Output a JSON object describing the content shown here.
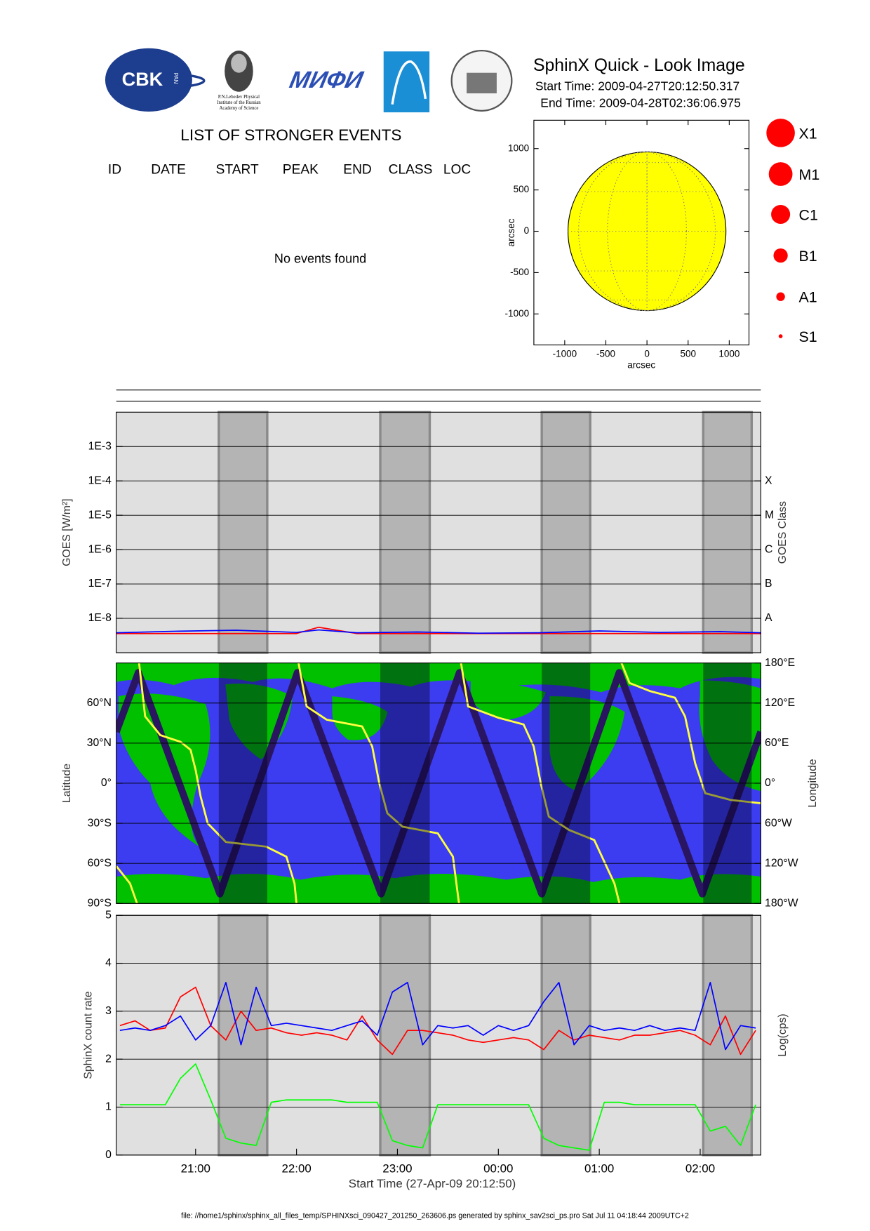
{
  "header": {
    "title": "SphinX Quick - Look Image",
    "start_time": "Start Time: 2009-04-27T20:12:50.317",
    "end_time": "End Time: 2009-04-28T02:36:06.975",
    "logo_cbk": "CBK",
    "logo_pan": "PAN",
    "logo_lebedev": [
      "P.N.Lebedev Physical",
      "Institute of the Russian",
      "Academy of Science"
    ],
    "logo_mifi": "МИФИ"
  },
  "events": {
    "title": "LIST OF STRONGER EVENTS",
    "columns": [
      "ID",
      "DATE",
      "START",
      "PEAK",
      "END",
      "CLASS",
      "LOC"
    ],
    "message": "No events found"
  },
  "chart_data": [
    {
      "type": "disk",
      "xlabel": "arcsec",
      "ylabel": "arcsec",
      "xlim": [
        -1375,
        1240
      ],
      "ylim": [
        -1375,
        1343
      ],
      "xticks": [
        -1000,
        -500,
        0,
        500,
        1000
      ],
      "yticks": [
        -1000,
        -500,
        0,
        500,
        1000
      ],
      "disk_radius": 960,
      "disk_color": "#ffff00",
      "legend": {
        "labels": [
          "X1",
          "M1",
          "C1",
          "B1",
          "A1",
          "S1"
        ],
        "color": "#ff0000"
      }
    },
    {
      "type": "line",
      "ylabel": "GOES [W/m²]",
      "y2label": "GOES Class",
      "log_y": true,
      "grid": true,
      "xlim": [
        20.214,
        26.601
      ],
      "ylim": [
        1e-09,
        0.01
      ],
      "yticks": [
        {
          "value": 1e-08,
          "label": "1E-8"
        },
        {
          "value": 1e-07,
          "label": "1E-7"
        },
        {
          "value": 1e-06,
          "label": "1E-6"
        },
        {
          "value": 1e-05,
          "label": "1E-5"
        },
        {
          "value": 0.0001,
          "label": "1E-4"
        },
        {
          "value": 0.001,
          "label": "1E-3"
        }
      ],
      "y2lim": [
        1e-09,
        0.01
      ],
      "y2ticks": [
        {
          "value": 1e-08,
          "label": "A"
        },
        {
          "value": 1e-07,
          "label": "B"
        },
        {
          "value": 1e-06,
          "label": "C"
        },
        {
          "value": 1e-05,
          "label": "M"
        },
        {
          "value": 0.0001,
          "label": "X"
        }
      ],
      "shaded_intervals": [
        [
          21.23,
          21.71
        ],
        [
          22.83,
          23.32
        ],
        [
          24.43,
          24.91
        ],
        [
          26.03,
          26.51
        ]
      ],
      "x": [
        20.214,
        20.8,
        21.4,
        22.0,
        22.22,
        22.6,
        23.2,
        23.8,
        24.4,
        25.0,
        25.6,
        26.2,
        26.601
      ],
      "series": [
        {
          "color": "#ff0000",
          "values": [
            3.6e-09,
            3.6e-09,
            3.6e-09,
            3.6e-09,
            5.5e-09,
            3.6e-09,
            3.6e-09,
            3.6e-09,
            3.6e-09,
            3.6e-09,
            3.6e-09,
            3.6e-09,
            3.6e-09
          ]
        },
        {
          "color": "#0000ff",
          "values": [
            3.8e-09,
            4.2e-09,
            4.5e-09,
            3.9e-09,
            4.6e-09,
            3.8e-09,
            4e-09,
            3.7e-09,
            3.8e-09,
            4.3e-09,
            3.9e-09,
            4.1e-09,
            3.8e-09
          ]
        }
      ]
    },
    {
      "type": "map",
      "ylabel": "Latitude",
      "y2label": "Longitude",
      "grid": true,
      "xlim": [
        20.214,
        26.601
      ],
      "ylim": [
        -90,
        90
      ],
      "yticks": [
        {
          "value": -90,
          "label": "90°S"
        },
        {
          "value": -60,
          "label": "60°S"
        },
        {
          "value": -30,
          "label": "30°S"
        },
        {
          "value": 0,
          "label": "0°"
        },
        {
          "value": 30,
          "label": "30°N"
        },
        {
          "value": 60,
          "label": "60°N"
        }
      ],
      "y2lim": [
        -180,
        180
      ],
      "y2ticks": [
        {
          "value": -180,
          "label": "180°W"
        },
        {
          "value": -120,
          "label": "120°W"
        },
        {
          "value": -60,
          "label": "60°W"
        },
        {
          "value": 0,
          "label": "0°"
        },
        {
          "value": 60,
          "label": "60°E"
        },
        {
          "value": 120,
          "label": "120°E"
        },
        {
          "value": 180,
          "label": "180°E"
        }
      ],
      "shaded_intervals": [
        [
          21.23,
          21.71
        ],
        [
          22.83,
          23.32
        ],
        [
          24.43,
          24.91
        ],
        [
          26.03,
          26.51
        ]
      ],
      "series": [
        {
          "color": "#2a1560",
          "x": [
            20.214,
            20.433,
            21.241,
            22.009,
            22.839,
            23.615,
            24.43,
            25.198,
            26.021,
            26.601
          ],
          "values": [
            38.5,
            82.8,
            -82.8,
            82.8,
            -82.8,
            82.8,
            -82.8,
            82.8,
            -82.8,
            38.5
          ]
        },
        {
          "color": "#ffff40",
          "axis": "y2",
          "x": [
            20.214,
            20.35,
            20.42,
            20.43,
            20.44,
            20.5,
            20.65,
            20.85,
            20.95,
            21.0,
            21.05,
            21.12,
            21.3,
            21.7,
            21.9,
            21.98,
            22.0,
            22.01,
            22.02,
            22.1,
            22.3,
            22.65,
            22.75,
            22.82,
            22.9,
            23.05,
            23.4,
            23.55,
            23.61,
            23.62,
            23.63,
            23.7,
            24.0,
            24.25,
            24.35,
            24.42,
            24.5,
            24.7,
            24.95,
            25.15,
            25.2,
            25.21,
            25.22,
            25.3,
            25.5,
            25.75,
            25.85,
            25.95,
            26.05,
            26.3,
            26.6
          ],
          "values": [
            -124,
            -150,
            -180,
            null,
            180,
            100,
            72,
            62,
            50,
            20,
            -20,
            -60,
            -88,
            -95,
            -110,
            -150,
            -180,
            null,
            180,
            115,
            95,
            85,
            55,
            0,
            -45,
            -65,
            -75,
            -110,
            -180,
            null,
            180,
            115,
            98,
            88,
            55,
            0,
            -50,
            -70,
            -85,
            -150,
            -180,
            null,
            180,
            150,
            138,
            128,
            100,
            30,
            -15,
            -25,
            -30
          ]
        }
      ]
    },
    {
      "type": "line",
      "ylabel": "SphinX count rate",
      "y2label": "Log(cps)",
      "xlabel": "Start Time (27-Apr-09 20:12:50)",
      "grid": true,
      "xlim": [
        20.214,
        26.601
      ],
      "ylim": [
        0,
        5
      ],
      "yticks": [
        0,
        1,
        2,
        3,
        4,
        5
      ],
      "xticks": [
        {
          "value": 21,
          "label": "21:00"
        },
        {
          "value": 22,
          "label": "22:00"
        },
        {
          "value": 23,
          "label": "23:00"
        },
        {
          "value": 24,
          "label": "00:00"
        },
        {
          "value": 25,
          "label": "01:00"
        },
        {
          "value": 26,
          "label": "02:00"
        }
      ],
      "shaded_intervals": [
        [
          21.23,
          21.71
        ],
        [
          22.83,
          23.32
        ],
        [
          24.43,
          24.91
        ],
        [
          26.03,
          26.51
        ]
      ],
      "x": [
        20.25,
        20.4,
        20.55,
        20.7,
        20.85,
        21.0,
        21.15,
        21.3,
        21.45,
        21.6,
        21.75,
        21.9,
        22.05,
        22.2,
        22.35,
        22.5,
        22.65,
        22.8,
        22.95,
        23.1,
        23.25,
        23.4,
        23.55,
        23.7,
        23.85,
        24.0,
        24.15,
        24.3,
        24.45,
        24.6,
        24.75,
        24.9,
        25.05,
        25.2,
        25.35,
        25.5,
        25.65,
        25.8,
        25.95,
        26.1,
        26.25,
        26.4,
        26.55
      ],
      "series": [
        {
          "color": "#ff0000",
          "values": [
            2.7,
            2.8,
            2.6,
            2.65,
            3.3,
            3.5,
            2.7,
            2.4,
            3.0,
            2.6,
            2.65,
            2.55,
            2.5,
            2.55,
            2.5,
            2.4,
            2.9,
            2.4,
            2.1,
            2.6,
            2.6,
            2.55,
            2.5,
            2.4,
            2.35,
            2.4,
            2.45,
            2.4,
            2.2,
            2.6,
            2.4,
            2.5,
            2.45,
            2.4,
            2.5,
            2.5,
            2.55,
            2.6,
            2.5,
            2.3,
            2.9,
            2.1,
            2.6
          ]
        },
        {
          "color": "#0000ff",
          "values": [
            2.6,
            2.65,
            2.6,
            2.7,
            2.9,
            2.4,
            2.7,
            3.6,
            2.3,
            3.5,
            2.7,
            2.75,
            2.7,
            2.65,
            2.6,
            2.7,
            2.8,
            2.5,
            3.4,
            3.6,
            2.3,
            2.7,
            2.65,
            2.7,
            2.5,
            2.7,
            2.6,
            2.7,
            3.2,
            3.6,
            2.3,
            2.7,
            2.6,
            2.65,
            2.6,
            2.7,
            2.6,
            2.65,
            2.6,
            3.6,
            2.2,
            2.7,
            2.65
          ]
        },
        {
          "color": "#00ff00",
          "values": [
            1.05,
            1.05,
            1.05,
            1.05,
            1.6,
            1.9,
            1.15,
            0.35,
            0.25,
            0.2,
            1.1,
            1.15,
            1.15,
            1.15,
            1.15,
            1.1,
            1.1,
            1.1,
            0.3,
            0.2,
            0.15,
            1.05,
            1.05,
            1.05,
            1.05,
            1.05,
            1.05,
            1.05,
            0.35,
            0.2,
            0.15,
            0.1,
            1.1,
            1.1,
            1.05,
            1.05,
            1.05,
            1.05,
            1.05,
            0.5,
            0.6,
            0.2,
            1.05
          ]
        }
      ]
    }
  ],
  "footer": "file: //home1/sphinx/sphinx_all_files_temp/SPHINXsci_090427_201250_263606.ps generated by sphinx_sav2sci_ps.pro Sat Jul 11 04:18:44 2009UTC+2"
}
